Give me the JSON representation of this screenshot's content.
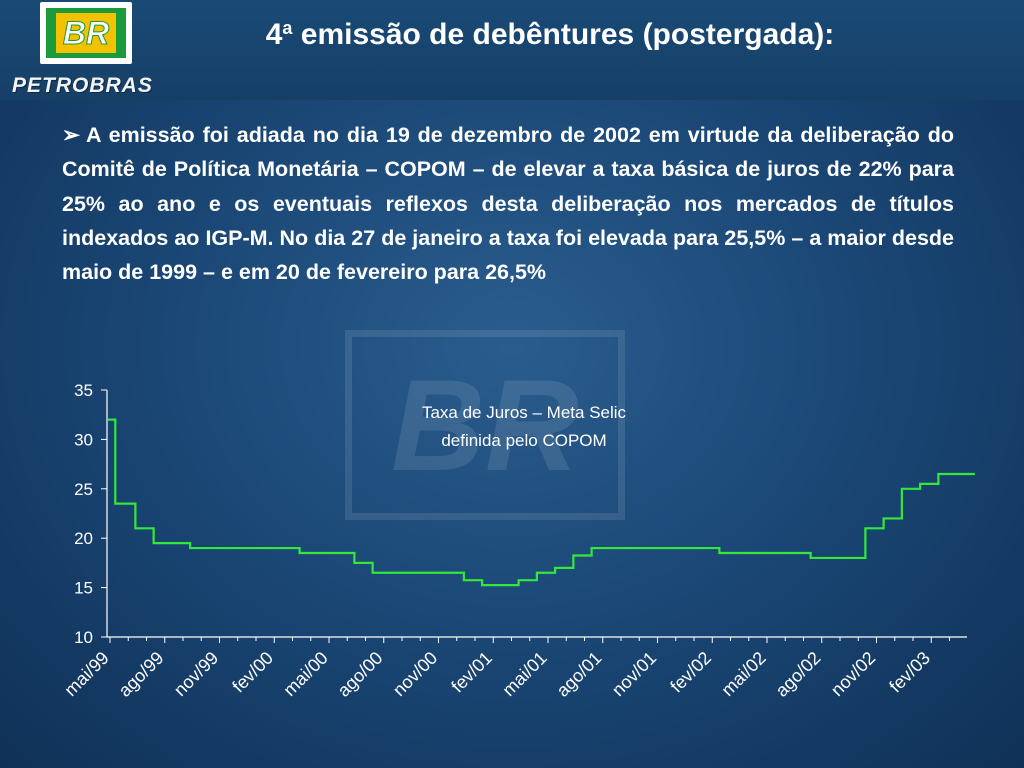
{
  "header": {
    "title_number": "4",
    "title_super": "a",
    "title_rest": " emissão de debêntures (postergada):",
    "logo_text": "BR",
    "brand": "PETROBRAS"
  },
  "body": {
    "paragraph": "A emissão foi adiada  no dia 19 de dezembro de 2002 em virtude da deliberação do Comitê de Política Monetária – COPOM – de elevar a taxa básica de juros de 22% para 25% ao ano e os eventuais reflexos desta deliberação nos mercados de títulos indexados ao IGP-M.  No dia 27 de janeiro a taxa foi elevada para 25,5% – a maior desde maio de 1999 – e em 20 de fevereiro para 26,5%"
  },
  "colors": {
    "line": "#33e83a",
    "logo_green": "#1a9a3a",
    "logo_yellow": "#f2c200"
  },
  "chart_data": {
    "type": "line",
    "step": true,
    "annotation_line1": "Taxa de Juros – Meta Selic",
    "annotation_line2": "definida pelo COPOM",
    "ylim": [
      10,
      35
    ],
    "yticks": [
      10,
      15,
      20,
      25,
      30,
      35
    ],
    "x_ticks": [
      "mai/99",
      "ago/99",
      "nov/99",
      "fev/00",
      "mai/00",
      "ago/00",
      "nov/00",
      "fev/01",
      "mai/01",
      "ago/01",
      "nov/01",
      "fev/02",
      "mai/02",
      "ago/02",
      "nov/02",
      "fev/03"
    ],
    "series": [
      {
        "x_months": [
          0,
          0.4,
          1.5,
          2.5,
          4.5,
          10.5,
          13.5,
          14.5,
          17.5,
          19.5,
          20.5,
          22.5,
          23.5,
          24.5,
          25.5,
          26.5,
          33.5,
          34.5,
          38.5,
          40.5,
          41.5,
          42.5,
          43.5,
          44.5,
          45.5,
          47.5
        ],
        "values": [
          32,
          23.5,
          21,
          19.5,
          19,
          18.5,
          17.5,
          16.5,
          16.5,
          15.75,
          15.25,
          15.75,
          16.5,
          17,
          18.25,
          19,
          18.5,
          18.5,
          18,
          18,
          21,
          22,
          25,
          25.5,
          26.5,
          26.5
        ]
      }
    ]
  }
}
